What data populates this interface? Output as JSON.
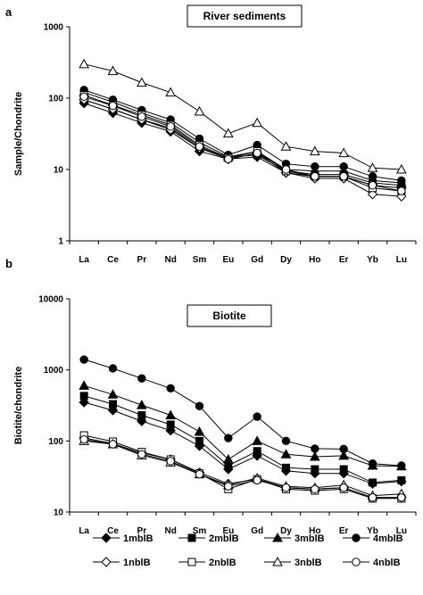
{
  "chart_data": [
    {
      "type": "line",
      "panel_label": "a",
      "title": "River sediments",
      "ylabel": "Sample/Chondrite",
      "y_scale": "log",
      "ylim": [
        1,
        1000
      ],
      "y_ticks": [
        "1",
        "10",
        "100",
        "1000"
      ],
      "categories": [
        "La",
        "Ce",
        "Pr",
        "Nd",
        "Sm",
        "Eu",
        "Gd",
        "Dy",
        "Ho",
        "Er",
        "Yb",
        "Lu"
      ],
      "series": [
        {
          "name": "1mblB",
          "marker": "diamond",
          "filled": true,
          "values": [
            85,
            62,
            45,
            34,
            18,
            14,
            15,
            9,
            8,
            8,
            6,
            5.5
          ]
        },
        {
          "name": "2mblB",
          "marker": "square",
          "filled": true,
          "values": [
            95,
            70,
            50,
            38,
            20,
            15,
            16,
            9.5,
            8.5,
            8.5,
            6.5,
            6
          ]
        },
        {
          "name": "3mblB",
          "marker": "triangle",
          "filled": true,
          "values": [
            120,
            88,
            62,
            45,
            24,
            15,
            18,
            10,
            9.5,
            9.5,
            7,
            6.5
          ]
        },
        {
          "name": "4mblB",
          "marker": "circle",
          "filled": true,
          "values": [
            130,
            95,
            68,
            50,
            27,
            16,
            22,
            12,
            11,
            11,
            8,
            7
          ]
        },
        {
          "name": "1nblB",
          "marker": "diamond",
          "filled": false,
          "values": [
            95,
            70,
            50,
            36,
            20,
            14,
            17,
            9,
            7.5,
            7.5,
            4.5,
            4.2
          ]
        },
        {
          "name": "2nblB",
          "marker": "square",
          "filled": false,
          "values": [
            110,
            80,
            58,
            42,
            22,
            14.5,
            18,
            9.5,
            8,
            8,
            5.5,
            5
          ]
        },
        {
          "name": "3nblB",
          "marker": "triangle",
          "filled": false,
          "values": [
            300,
            240,
            165,
            120,
            65,
            32,
            45,
            21,
            18,
            17,
            10.5,
            10
          ]
        },
        {
          "name": "4nblB",
          "marker": "circle",
          "filled": false,
          "values": [
            105,
            78,
            55,
            40,
            21,
            14,
            17,
            10,
            8,
            8,
            6,
            5
          ]
        }
      ]
    },
    {
      "type": "line",
      "panel_label": "b",
      "title": "Biotite",
      "ylabel": "Biotite/chondrite",
      "y_scale": "log",
      "ylim": [
        10,
        10000
      ],
      "y_ticks": [
        "10",
        "100",
        "1000",
        "10000"
      ],
      "categories": [
        "La",
        "Ce",
        "Pr",
        "Nd",
        "Sm",
        "Eu",
        "Gd",
        "Dy",
        "Ho",
        "Er",
        "Yb",
        "Lu"
      ],
      "series": [
        {
          "name": "1mblB",
          "marker": "diamond",
          "filled": true,
          "values": [
            350,
            270,
            190,
            140,
            85,
            40,
            62,
            38,
            35,
            35,
            25,
            27
          ]
        },
        {
          "name": "2mblB",
          "marker": "square",
          "filled": true,
          "values": [
            430,
            330,
            230,
            170,
            100,
            45,
            72,
            42,
            40,
            40,
            26,
            28
          ]
        },
        {
          "name": "3mblB",
          "marker": "triangle",
          "filled": true,
          "values": [
            600,
            450,
            320,
            230,
            135,
            55,
            100,
            65,
            60,
            62,
            45,
            44
          ]
        },
        {
          "name": "4mblB",
          "marker": "circle",
          "filled": true,
          "values": [
            1400,
            1050,
            760,
            550,
            310,
            110,
            220,
            100,
            78,
            77,
            48,
            45
          ]
        },
        {
          "name": "1nblB",
          "marker": "diamond",
          "filled": false,
          "values": [
            110,
            92,
            68,
            55,
            36,
            25,
            29,
            22,
            21,
            22,
            16,
            16
          ]
        },
        {
          "name": "2nblB",
          "marker": "square",
          "filled": false,
          "values": [
            120,
            98,
            70,
            55,
            35,
            21,
            29,
            21,
            20,
            21,
            15.5,
            15.5
          ]
        },
        {
          "name": "3nblB",
          "marker": "triangle",
          "filled": false,
          "values": [
            100,
            90,
            63,
            50,
            34,
            24,
            30,
            23,
            22,
            24,
            17,
            18
          ]
        },
        {
          "name": "4nblB",
          "marker": "circle",
          "filled": false,
          "values": [
            105,
            90,
            65,
            52,
            34,
            23,
            28,
            22,
            21,
            22,
            16,
            16
          ]
        }
      ]
    }
  ],
  "legend": [
    {
      "name": "1mblB",
      "marker": "diamond",
      "filled": true
    },
    {
      "name": "2mblB",
      "marker": "square",
      "filled": true
    },
    {
      "name": "3mblB",
      "marker": "triangle",
      "filled": true
    },
    {
      "name": "4mblB",
      "marker": "circle",
      "filled": true
    },
    {
      "name": "1nblB",
      "marker": "diamond",
      "filled": false
    },
    {
      "name": "2nblB",
      "marker": "square",
      "filled": false
    },
    {
      "name": "3nblB",
      "marker": "triangle",
      "filled": false
    },
    {
      "name": "4nblB",
      "marker": "circle",
      "filled": false
    }
  ]
}
